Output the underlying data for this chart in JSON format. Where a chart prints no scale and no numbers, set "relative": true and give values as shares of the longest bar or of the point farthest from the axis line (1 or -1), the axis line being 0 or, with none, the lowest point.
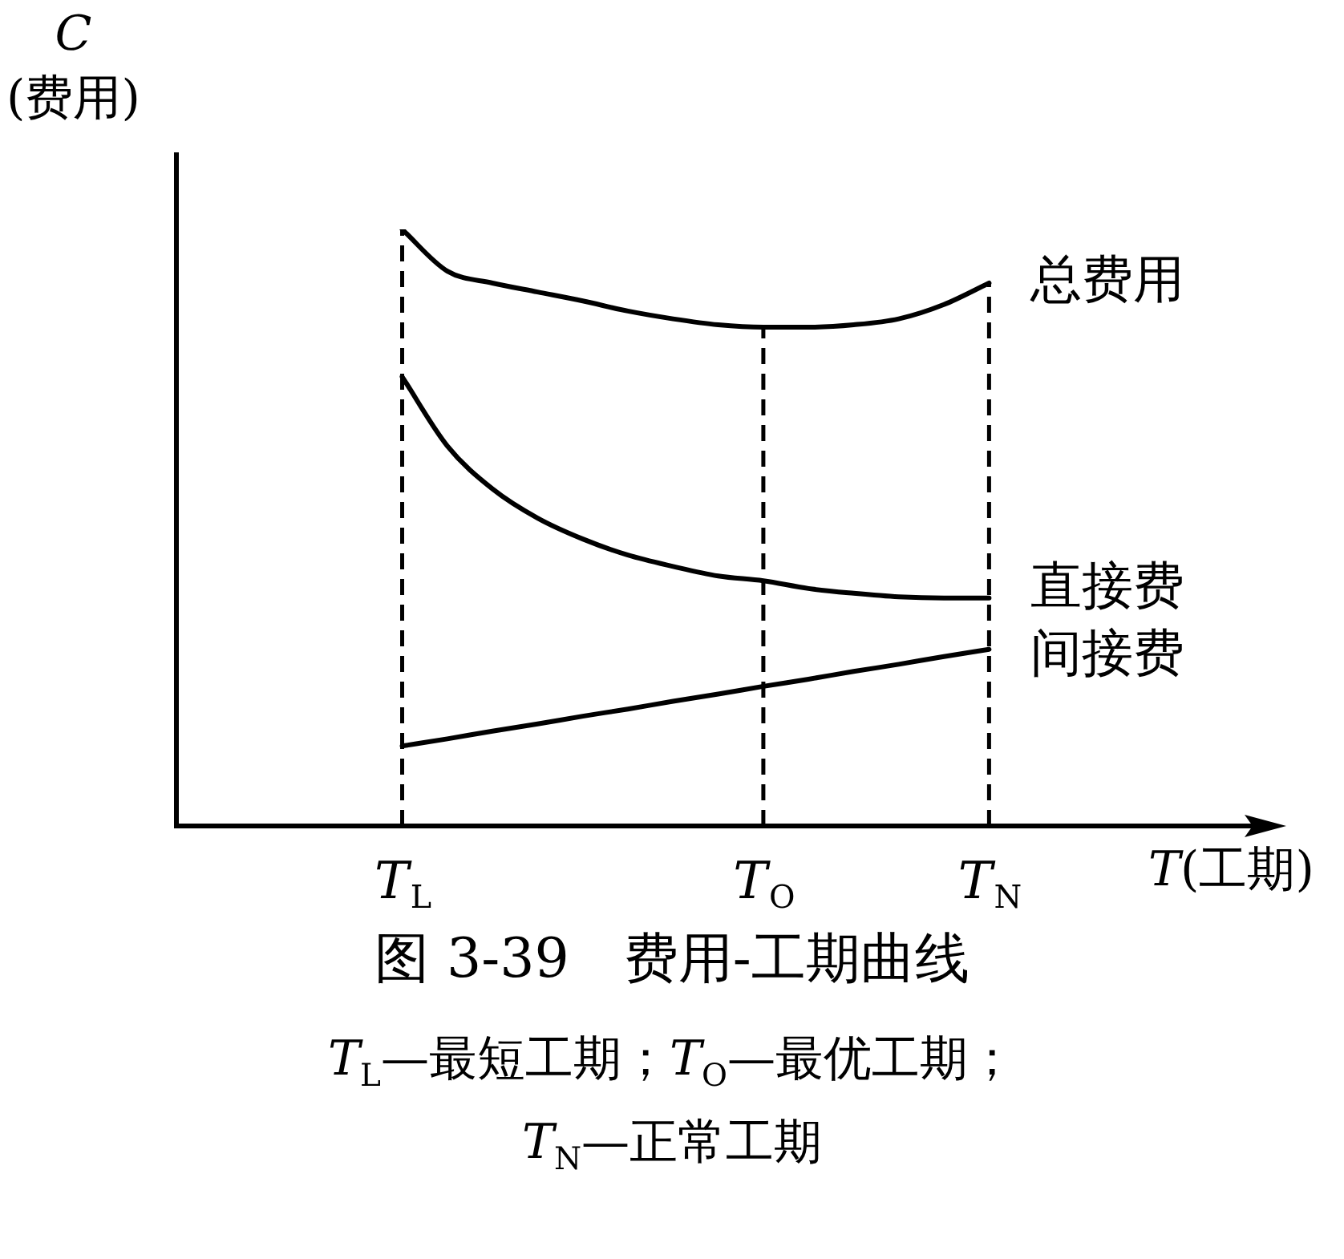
{
  "chart_data": {
    "type": "line",
    "relative": true,
    "title": "图 3-39　费用-工期曲线",
    "xlabel": "T(工期)",
    "ylabel": "C\n(费用)",
    "categories": [
      null,
      null,
      null,
      null,
      null,
      "T$_{L}$",
      null,
      null,
      null,
      null,
      null,
      null,
      null,
      "T$_{O}$",
      null,
      null,
      null,
      null,
      "T$_{N}$",
      null,
      null,
      null,
      null,
      null
    ],
    "series": [
      {
        "name": "总费用",
        "color": "#000000",
        "values": [
          null,
          null,
          null,
          null,
          null,
          1.0,
          0.93,
          0.91,
          0.895,
          0.88,
          0.863,
          0.85,
          0.84,
          0.836,
          0.836,
          0.84,
          0.85,
          0.874,
          0.91,
          null,
          null,
          null,
          null,
          null
        ]
      },
      {
        "name": "直接费",
        "color": "#000000",
        "values": [
          null,
          null,
          null,
          null,
          null,
          0.753,
          0.637,
          0.565,
          0.516,
          0.481,
          0.454,
          0.435,
          0.419,
          0.411,
          0.398,
          0.39,
          0.384,
          0.382,
          0.382,
          null,
          null,
          null,
          null,
          null
        ]
      },
      {
        "name": "间接费",
        "color": "#000000",
        "values": [
          null,
          null,
          null,
          null,
          null,
          0.134,
          0.146,
          0.159,
          0.171,
          0.184,
          0.196,
          0.209,
          0.221,
          0.234,
          0.246,
          0.259,
          0.271,
          0.284,
          0.296,
          null,
          null,
          null,
          null,
          null
        ]
      }
    ],
    "ref_lines": [
      {
        "axis": "x",
        "value": "T$_{L}$",
        "line_style": "dashed"
      },
      {
        "axis": "x",
        "value": "T$_{O}$",
        "line_style": "dashed"
      },
      {
        "axis": "x",
        "value": "T$_{N}$",
        "line_style": "dashed"
      }
    ],
    "annotations": [
      "T$_{L}$—最短工期；T$_{O}$—最优工期；",
      "T$_{N}$—正常工期"
    ],
    "legend": false,
    "marker": "none",
    "line_style": "solid"
  }
}
